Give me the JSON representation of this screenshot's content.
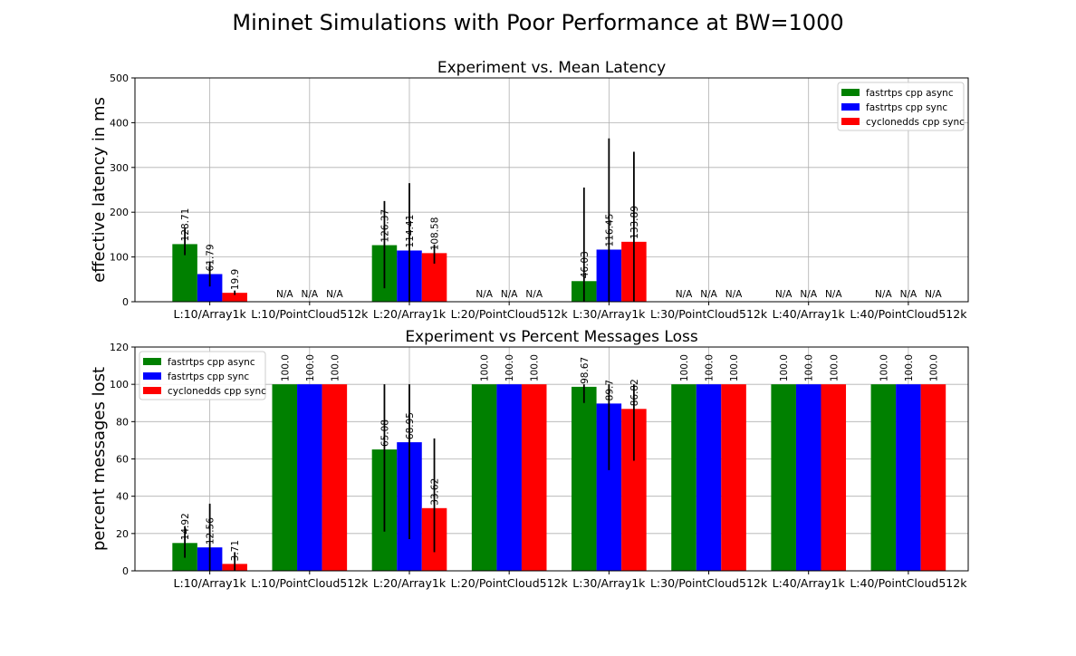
{
  "figure_title": "Mininet Simulations with Poor Performance at BW=1000",
  "chart_data": [
    {
      "type": "bar",
      "title": "Experiment vs. Mean Latency",
      "xlabel": "",
      "ylabel": "effective latency in ms",
      "ylim": [
        0,
        500
      ],
      "yticks": [
        0,
        100,
        200,
        300,
        400,
        500
      ],
      "grid": true,
      "legend_position": "top-right",
      "categories": [
        "L:10/Array1k",
        "L:10/PointCloud512k",
        "L:20/Array1k",
        "L:20/PointCloud512k",
        "L:30/Array1k",
        "L:30/PointCloud512k",
        "L:40/Array1k",
        "L:40/PointCloud512k"
      ],
      "series": [
        {
          "name": "fastrtps cpp async",
          "color": "#008000",
          "values": [
            128.71,
            null,
            126.37,
            null,
            46.03,
            null,
            null,
            null
          ],
          "labels": [
            "128.71",
            "N/A",
            "126.37",
            "N/A",
            "46.03",
            "N/A",
            "N/A",
            "N/A"
          ],
          "errors": [
            [
              104,
              165
            ],
            null,
            [
              30,
              225
            ],
            null,
            [
              0,
              255
            ],
            null,
            null,
            null
          ]
        },
        {
          "name": "fastrtps cpp sync",
          "color": "#0000ff",
          "values": [
            61.79,
            null,
            114.41,
            null,
            116.45,
            null,
            null,
            null
          ],
          "labels": [
            "61.79",
            "N/A",
            "114.41",
            "N/A",
            "116.45",
            "N/A",
            "N/A",
            "N/A"
          ],
          "errors": [
            [
              34,
              90
            ],
            null,
            [
              0,
              265
            ],
            null,
            [
              0,
              365
            ],
            null,
            null,
            null
          ]
        },
        {
          "name": "cyclonedds cpp sync",
          "color": "#ff0000",
          "values": [
            19.9,
            null,
            108.58,
            null,
            133.89,
            null,
            null,
            null
          ],
          "labels": [
            "19.9",
            "N/A",
            "108.58",
            "N/A",
            "133.89",
            "N/A",
            "N/A",
            "N/A"
          ],
          "errors": [
            [
              15,
              25
            ],
            null,
            [
              85,
              128
            ],
            null,
            [
              0,
              335
            ],
            null,
            null,
            null
          ]
        }
      ]
    },
    {
      "type": "bar",
      "title": "Experiment vs Percent Messages Loss",
      "xlabel": "",
      "ylabel": "percent messages lost",
      "ylim": [
        0,
        120
      ],
      "yticks": [
        0,
        20,
        40,
        60,
        80,
        100,
        120
      ],
      "grid": true,
      "legend_position": "top-left",
      "categories": [
        "L:10/Array1k",
        "L:10/PointCloud512k",
        "L:20/Array1k",
        "L:20/PointCloud512k",
        "L:30/Array1k",
        "L:30/PointCloud512k",
        "L:40/Array1k",
        "L:40/PointCloud512k"
      ],
      "series": [
        {
          "name": "fastrtps cpp async",
          "color": "#008000",
          "values": [
            14.92,
            100.0,
            65.08,
            100.0,
            98.67,
            100.0,
            100.0,
            100.0
          ],
          "labels": [
            "14.92",
            "100.0",
            "65.08",
            "100.0",
            "98.67",
            "100.0",
            "100.0",
            "100.0"
          ],
          "errors": [
            [
              7,
              24
            ],
            null,
            [
              21,
              100
            ],
            null,
            [
              90,
              100
            ],
            null,
            null,
            null
          ]
        },
        {
          "name": "fastrtps cpp sync",
          "color": "#0000ff",
          "values": [
            12.56,
            100.0,
            68.95,
            100.0,
            89.7,
            100.0,
            100.0,
            100.0
          ],
          "labels": [
            "12.56",
            "100.0",
            "68.95",
            "100.0",
            "89.7",
            "100.0",
            "100.0",
            "100.0"
          ],
          "errors": [
            [
              0,
              36
            ],
            null,
            [
              17,
              100
            ],
            null,
            [
              54,
              100
            ],
            null,
            null,
            null
          ]
        },
        {
          "name": "cyclonedds cpp sync",
          "color": "#ff0000",
          "values": [
            3.71,
            100.0,
            33.62,
            100.0,
            86.82,
            100.0,
            100.0,
            100.0
          ],
          "labels": [
            "3.71",
            "100.0",
            "33.62",
            "100.0",
            "86.82",
            "100.0",
            "100.0",
            "100.0"
          ],
          "errors": [
            [
              0,
              10
            ],
            null,
            [
              10,
              71
            ],
            null,
            [
              59,
              100
            ],
            null,
            null,
            null
          ]
        }
      ]
    }
  ]
}
